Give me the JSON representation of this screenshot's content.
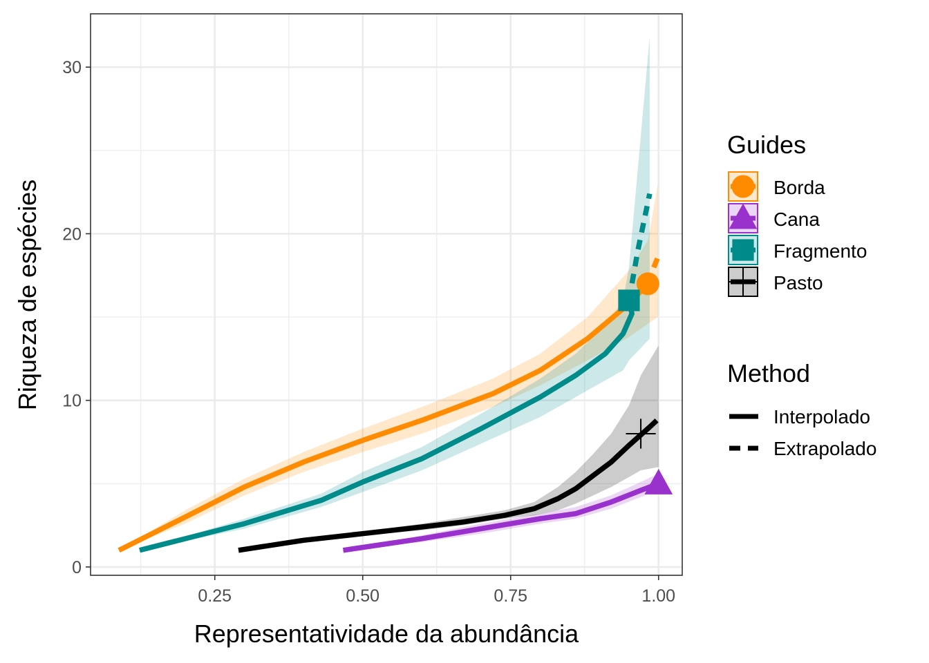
{
  "chart_data": {
    "type": "line",
    "xlabel": "Representatividade da abundância",
    "ylabel": "Riqueza de espécies",
    "xlim": [
      0.04,
      1.04
    ],
    "ylim": [
      -0.5,
      33.2
    ],
    "xticks": [
      "0.25",
      "0.50",
      "0.75",
      "1.00"
    ],
    "xtick_values": [
      0.25,
      0.5,
      0.75,
      1.0
    ],
    "yticks": [
      "0",
      "10",
      "20",
      "30"
    ],
    "ytick_values": [
      0,
      10,
      20,
      30
    ],
    "grid": true,
    "legend_position": "right",
    "legend": {
      "guides_title": "Guides",
      "method_title": "Method",
      "method_labels": [
        "Interpolado",
        "Extrapolado"
      ]
    },
    "series": [
      {
        "name": "Borda",
        "color": "#FF8C00",
        "marker": "circle",
        "observed": {
          "x": 0.982,
          "y": 17
        },
        "interpolated": {
          "x": [
            0.088,
            0.2,
            0.3,
            0.4,
            0.5,
            0.6,
            0.72,
            0.8,
            0.88,
            0.95,
            0.982
          ],
          "y": [
            1,
            3.0,
            4.8,
            6.3,
            7.6,
            8.8,
            10.4,
            11.8,
            13.7,
            15.8,
            17
          ]
        },
        "extrapolated": {
          "x": [
            0.982,
            0.99,
            0.999
          ],
          "y": [
            17,
            17.8,
            18.6
          ]
        },
        "band": {
          "x": [
            0.088,
            0.2,
            0.3,
            0.4,
            0.5,
            0.6,
            0.72,
            0.8,
            0.88,
            0.95,
            0.982,
            0.999
          ],
          "lower": [
            1,
            2.6,
            4.3,
            5.7,
            6.9,
            8.0,
            9.6,
            10.9,
            12.4,
            13.8,
            14.6,
            15.0
          ],
          "upper": [
            1,
            3.4,
            5.3,
            6.9,
            8.3,
            9.6,
            11.3,
            12.8,
            15.0,
            17.8,
            19.6,
            23.0
          ]
        }
      },
      {
        "name": "Cana",
        "color": "#9932CC",
        "marker": "triangle",
        "observed": {
          "x": 1.0,
          "y": 5
        },
        "interpolated": {
          "x": [
            0.467,
            0.6,
            0.7,
            0.8,
            0.86,
            0.92,
            0.97,
            1.0
          ],
          "y": [
            1,
            1.7,
            2.3,
            2.9,
            3.2,
            3.9,
            4.6,
            5
          ]
        },
        "extrapolated": {
          "x": [
            1.0,
            1.0
          ],
          "y": [
            5,
            5.1
          ]
        },
        "band": {
          "x": [
            0.467,
            0.6,
            0.7,
            0.8,
            0.86,
            0.92,
            0.97,
            1.0
          ],
          "lower": [
            1,
            1.5,
            2.0,
            2.6,
            2.9,
            3.5,
            4.2,
            4.6
          ],
          "upper": [
            1,
            1.9,
            2.6,
            3.2,
            3.6,
            4.3,
            5.1,
            5.6
          ]
        }
      },
      {
        "name": "Fragmento",
        "color": "#008B8B",
        "marker": "square",
        "observed": {
          "x": 0.95,
          "y": 16
        },
        "interpolated": {
          "x": [
            0.123,
            0.3,
            0.43,
            0.5,
            0.6,
            0.7,
            0.8,
            0.86,
            0.91,
            0.94,
            0.955,
            0.95
          ],
          "y": [
            1,
            2.6,
            4.0,
            5.1,
            6.5,
            8.3,
            10.2,
            11.5,
            12.8,
            14.0,
            15.2,
            16
          ]
        },
        "extrapolated": {
          "x": [
            0.95,
            0.965,
            0.985
          ],
          "y": [
            16,
            19.0,
            22.4
          ]
        },
        "band": {
          "x": [
            0.123,
            0.3,
            0.43,
            0.5,
            0.6,
            0.7,
            0.8,
            0.86,
            0.91,
            0.94,
            0.95,
            0.985
          ],
          "lower": [
            1,
            2.3,
            3.6,
            4.5,
            5.8,
            7.4,
            9.0,
            10.2,
            11.2,
            11.8,
            12.4,
            13.7
          ],
          "upper": [
            1,
            2.9,
            4.4,
            5.7,
            7.2,
            9.2,
            11.3,
            12.8,
            14.5,
            16.0,
            18.0,
            31.8
          ]
        }
      },
      {
        "name": "Pasto",
        "color": "#000000",
        "marker": "plus",
        "observed": {
          "x": 0.97,
          "y": 8
        },
        "interpolated": {
          "x": [
            0.29,
            0.4,
            0.5,
            0.6,
            0.67,
            0.74,
            0.79,
            0.83,
            0.86,
            0.89,
            0.92,
            0.95,
            0.985
          ],
          "y": [
            1,
            1.6,
            2.0,
            2.4,
            2.7,
            3.1,
            3.5,
            4.1,
            4.7,
            5.5,
            6.3,
            7.3,
            8.4
          ]
        },
        "extrapolated": {
          "x": [
            0.985,
            1.0
          ],
          "y": [
            8.4,
            8.9
          ]
        },
        "band": {
          "x": [
            0.29,
            0.4,
            0.5,
            0.6,
            0.67,
            0.74,
            0.79,
            0.83,
            0.86,
            0.89,
            0.92,
            0.95,
            0.97,
            1.0
          ],
          "lower": [
            1,
            1.5,
            1.9,
            2.2,
            2.5,
            2.9,
            3.1,
            3.4,
            3.8,
            4.3,
            4.8,
            5.4,
            5.8,
            6.0
          ],
          "upper": [
            1,
            1.7,
            2.1,
            2.6,
            3.0,
            3.4,
            3.9,
            4.8,
            5.7,
            6.8,
            8.0,
            9.7,
            11.5,
            13.3
          ]
        }
      }
    ]
  }
}
